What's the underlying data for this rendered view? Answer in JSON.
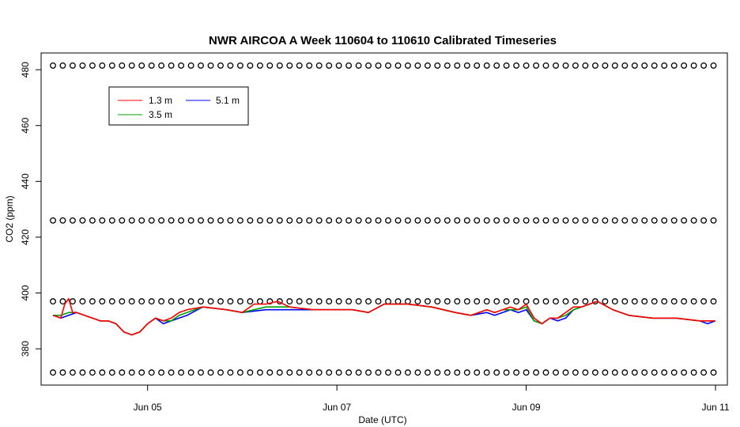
{
  "chart_data": {
    "type": "line",
    "title": "NWR AIRCOA A  Week 110604 to 110610  Calibrated Timeseries",
    "xlabel": "Date (UTC)",
    "ylabel": "CO2 (ppm)",
    "xlim": [
      "2011-06-03T21:00",
      "2011-06-11T03:00"
    ],
    "ylim": [
      367,
      486
    ],
    "x_ticks": [
      {
        "date": "2011-06-05T00:00",
        "label": "Jun 05"
      },
      {
        "date": "2011-06-07T00:00",
        "label": "Jun 07"
      },
      {
        "date": "2011-06-09T00:00",
        "label": "Jun 09"
      },
      {
        "date": "2011-06-11T00:00",
        "label": "Jun 11"
      }
    ],
    "y_ticks": [
      380,
      400,
      420,
      440,
      460,
      480
    ],
    "grid": false,
    "legend_position": "top-left",
    "legend": [
      {
        "name": "1.3 m",
        "color": "#ff0000"
      },
      {
        "name": "3.5 m",
        "color": "#00a000"
      },
      {
        "name": "5.1 m",
        "color": "#0000ff"
      }
    ],
    "series": [
      {
        "name": "5.1 m",
        "color": "#0000ff",
        "x": [
          "2011-06-04T00:00",
          "2011-06-04T02:00",
          "2011-06-04T04:00",
          "2011-06-04T06:00",
          "2011-06-04T08:00",
          "2011-06-04T10:00",
          "2011-06-04T12:00",
          "2011-06-04T14:00",
          "2011-06-04T16:00",
          "2011-06-04T18:00",
          "2011-06-04T20:00",
          "2011-06-04T22:00",
          "2011-06-05T00:00",
          "2011-06-05T02:00",
          "2011-06-05T04:00",
          "2011-06-05T06:00",
          "2011-06-05T08:00",
          "2011-06-05T10:00",
          "2011-06-05T14:00",
          "2011-06-05T20:00",
          "2011-06-06T00:00",
          "2011-06-06T06:00",
          "2011-06-06T12:00",
          "2011-06-06T18:00",
          "2011-06-07T00:00",
          "2011-06-07T04:00",
          "2011-06-07T08:00",
          "2011-06-07T12:00",
          "2011-06-07T18:00",
          "2011-06-08T00:00",
          "2011-06-08T06:00",
          "2011-06-08T10:00",
          "2011-06-08T14:00",
          "2011-06-08T16:00",
          "2011-06-08T18:00",
          "2011-06-08T20:00",
          "2011-06-08T22:00",
          "2011-06-09T00:00",
          "2011-06-09T02:00",
          "2011-06-09T04:00",
          "2011-06-09T06:00",
          "2011-06-09T08:00",
          "2011-06-09T10:00",
          "2011-06-09T12:00",
          "2011-06-09T14:00",
          "2011-06-09T18:00",
          "2011-06-09T22:00",
          "2011-06-10T02:00",
          "2011-06-10T08:00",
          "2011-06-10T14:00",
          "2011-06-10T20:00",
          "2011-06-10T22:00",
          "2011-06-11T00:00"
        ],
        "y": [
          392,
          391,
          392,
          393,
          392,
          391,
          390,
          390,
          389,
          386,
          385,
          386,
          389,
          391,
          389,
          390,
          391,
          392,
          395,
          394,
          393,
          394,
          394,
          394,
          394,
          394,
          393,
          396,
          396,
          395,
          393,
          392,
          393,
          392,
          393,
          394,
          393,
          394,
          390,
          389,
          391,
          390,
          391,
          394,
          395,
          397,
          394,
          392,
          391,
          391,
          390,
          389,
          390
        ]
      },
      {
        "name": "3.5 m",
        "color": "#00a000",
        "x": [
          "2011-06-04T00:00",
          "2011-06-04T02:00",
          "2011-06-04T04:00",
          "2011-06-04T06:00",
          "2011-06-04T08:00",
          "2011-06-04T10:00",
          "2011-06-04T12:00",
          "2011-06-04T14:00",
          "2011-06-04T16:00",
          "2011-06-04T18:00",
          "2011-06-04T20:00",
          "2011-06-04T22:00",
          "2011-06-05T00:00",
          "2011-06-05T02:00",
          "2011-06-05T04:00",
          "2011-06-05T06:00",
          "2011-06-05T08:00",
          "2011-06-05T10:00",
          "2011-06-05T14:00",
          "2011-06-05T20:00",
          "2011-06-06T00:00",
          "2011-06-06T06:00",
          "2011-06-06T12:00",
          "2011-06-06T18:00",
          "2011-06-07T00:00",
          "2011-06-07T04:00",
          "2011-06-07T08:00",
          "2011-06-07T12:00",
          "2011-06-07T18:00",
          "2011-06-08T00:00",
          "2011-06-08T06:00",
          "2011-06-08T10:00",
          "2011-06-08T14:00",
          "2011-06-08T16:00",
          "2011-06-08T18:00",
          "2011-06-08T20:00",
          "2011-06-08T22:00",
          "2011-06-09T00:00",
          "2011-06-09T02:00",
          "2011-06-09T04:00",
          "2011-06-09T06:00",
          "2011-06-09T08:00",
          "2011-06-09T10:00",
          "2011-06-09T12:00",
          "2011-06-09T14:00",
          "2011-06-09T18:00",
          "2011-06-09T22:00",
          "2011-06-10T02:00",
          "2011-06-10T08:00",
          "2011-06-10T14:00",
          "2011-06-10T20:00",
          "2011-06-10T22:00",
          "2011-06-11T00:00"
        ],
        "y": [
          392,
          392,
          393,
          393,
          392,
          391,
          390,
          390,
          389,
          386,
          385,
          386,
          389,
          391,
          390,
          390,
          392,
          393,
          395,
          394,
          393,
          395,
          395,
          394,
          394,
          394,
          393,
          396,
          396,
          395,
          393,
          392,
          394,
          393,
          394,
          394,
          394,
          395,
          390,
          389,
          391,
          391,
          392,
          394,
          395,
          397,
          394,
          392,
          391,
          391,
          390,
          390,
          390
        ]
      },
      {
        "name": "1.3 m",
        "color": "#ff0000",
        "x": [
          "2011-06-04T00:00",
          "2011-06-04T02:00",
          "2011-06-04T03:00",
          "2011-06-04T04:00",
          "2011-06-04T05:00",
          "2011-06-04T06:00",
          "2011-06-04T08:00",
          "2011-06-04T10:00",
          "2011-06-04T12:00",
          "2011-06-04T14:00",
          "2011-06-04T16:00",
          "2011-06-04T18:00",
          "2011-06-04T20:00",
          "2011-06-04T22:00",
          "2011-06-05T00:00",
          "2011-06-05T02:00",
          "2011-06-05T04:00",
          "2011-06-05T06:00",
          "2011-06-05T08:00",
          "2011-06-05T10:00",
          "2011-06-05T14:00",
          "2011-06-05T20:00",
          "2011-06-06T00:00",
          "2011-06-06T03:00",
          "2011-06-06T06:00",
          "2011-06-06T09:00",
          "2011-06-06T12:00",
          "2011-06-06T18:00",
          "2011-06-07T00:00",
          "2011-06-07T04:00",
          "2011-06-07T08:00",
          "2011-06-07T12:00",
          "2011-06-07T18:00",
          "2011-06-08T00:00",
          "2011-06-08T06:00",
          "2011-06-08T10:00",
          "2011-06-08T14:00",
          "2011-06-08T16:00",
          "2011-06-08T18:00",
          "2011-06-08T20:00",
          "2011-06-08T22:00",
          "2011-06-09T00:00",
          "2011-06-09T02:00",
          "2011-06-09T04:00",
          "2011-06-09T06:00",
          "2011-06-09T08:00",
          "2011-06-09T10:00",
          "2011-06-09T12:00",
          "2011-06-09T14:00",
          "2011-06-09T18:00",
          "2011-06-09T22:00",
          "2011-06-10T02:00",
          "2011-06-10T08:00",
          "2011-06-10T14:00",
          "2011-06-10T20:00",
          "2011-06-10T22:00",
          "2011-06-11T00:00"
        ],
        "y": [
          392,
          391,
          396,
          398,
          393,
          393,
          392,
          391,
          390,
          390,
          389,
          386,
          385,
          386,
          389,
          391,
          390,
          391,
          393,
          394,
          395,
          394,
          393,
          396,
          396,
          397,
          395,
          394,
          394,
          394,
          393,
          396,
          396,
          395,
          393,
          392,
          394,
          393,
          394,
          395,
          394,
          396,
          391,
          389,
          391,
          391,
          393,
          395,
          395,
          397,
          394,
          392,
          391,
          391,
          390,
          390,
          390
        ]
      }
    ],
    "calibration_points": {
      "marker": "open-circle",
      "levels": [
        481.5,
        426,
        397,
        371.5
      ],
      "x_start": "2011-06-04T00:00",
      "x_end": "2011-06-11T00:00",
      "interval_hours": 2.5
    }
  }
}
